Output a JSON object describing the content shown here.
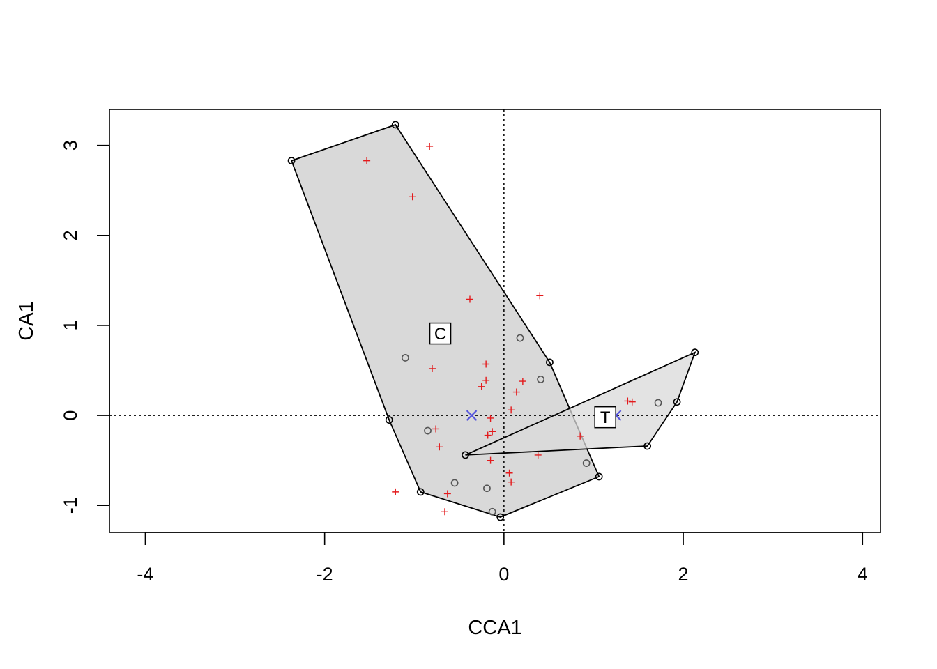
{
  "chart_data": {
    "type": "scatter",
    "title": "",
    "xlabel": "CCA1",
    "ylabel": "CA1",
    "xlim": [
      -4.4,
      4.2
    ],
    "ylim": [
      -1.3,
      3.4
    ],
    "x_ticks": [
      -4,
      -2,
      0,
      2,
      4
    ],
    "x_tick_labels": [
      "-4",
      "-2",
      "0",
      "2",
      "4"
    ],
    "y_ticks": [
      -1,
      0,
      1,
      2,
      3
    ],
    "y_tick_labels": [
      "-1",
      "0",
      "1",
      "2",
      "3"
    ],
    "reference_lines": {
      "x": 0,
      "y": 0,
      "style": "dotted"
    },
    "grid": false,
    "colors": {
      "sites": "#555555",
      "species": "#e31a1c",
      "centroids": "#5555dd",
      "hull_fill": "#d9d9d9",
      "hull_fill_overlap": "#c6c6c6",
      "hull_stroke": "#000000"
    },
    "sites": [
      {
        "x": -1.1,
        "y": 0.64
      },
      {
        "x": 0.18,
        "y": 0.86
      },
      {
        "x": 0.41,
        "y": 0.4
      },
      {
        "x": -0.85,
        "y": -0.17
      },
      {
        "x": -0.55,
        "y": -0.75
      },
      {
        "x": -0.19,
        "y": -0.81
      },
      {
        "x": -0.13,
        "y": -1.07
      },
      {
        "x": 0.92,
        "y": -0.53
      },
      {
        "x": 1.72,
        "y": 0.14
      }
    ],
    "species": [
      {
        "x": -0.83,
        "y": 2.99
      },
      {
        "x": -1.53,
        "y": 2.83
      },
      {
        "x": -1.02,
        "y": 2.43
      },
      {
        "x": -0.38,
        "y": 1.29
      },
      {
        "x": 0.4,
        "y": 1.33
      },
      {
        "x": -0.8,
        "y": 0.52
      },
      {
        "x": -0.2,
        "y": 0.57
      },
      {
        "x": -0.2,
        "y": 0.39
      },
      {
        "x": -0.25,
        "y": 0.32
      },
      {
        "x": 0.21,
        "y": 0.38
      },
      {
        "x": 0.14,
        "y": 0.26
      },
      {
        "x": 0.08,
        "y": 0.06
      },
      {
        "x": -0.15,
        "y": -0.03
      },
      {
        "x": -0.76,
        "y": -0.15
      },
      {
        "x": -0.13,
        "y": -0.18
      },
      {
        "x": -0.18,
        "y": -0.22
      },
      {
        "x": -0.72,
        "y": -0.35
      },
      {
        "x": -0.15,
        "y": -0.5
      },
      {
        "x": 0.38,
        "y": -0.44
      },
      {
        "x": 0.06,
        "y": -0.64
      },
      {
        "x": 0.08,
        "y": -0.74
      },
      {
        "x": -0.63,
        "y": -0.87
      },
      {
        "x": -1.21,
        "y": -0.85
      },
      {
        "x": -0.66,
        "y": -1.07
      },
      {
        "x": 0.85,
        "y": -0.23
      },
      {
        "x": 1.38,
        "y": 0.16
      },
      {
        "x": 1.43,
        "y": 0.15
      }
    ],
    "groups": [
      {
        "label": "C",
        "centroid": {
          "x": -0.36,
          "y": 0.0
        },
        "label_pos": {
          "x": -0.71,
          "y": 0.91
        },
        "hull": [
          {
            "x": -1.21,
            "y": 3.23
          },
          {
            "x": 0.51,
            "y": 0.59
          },
          {
            "x": 1.06,
            "y": -0.68
          },
          {
            "x": -0.04,
            "y": -1.13
          },
          {
            "x": -0.93,
            "y": -0.85
          },
          {
            "x": -1.28,
            "y": -0.05
          },
          {
            "x": -2.37,
            "y": 2.83
          }
        ]
      },
      {
        "label": "T",
        "centroid": {
          "x": 1.25,
          "y": 0.0
        },
        "label_pos": {
          "x": 1.13,
          "y": -0.02
        },
        "hull": [
          {
            "x": 2.13,
            "y": 0.7
          },
          {
            "x": 1.93,
            "y": 0.15
          },
          {
            "x": 1.6,
            "y": -0.34
          },
          {
            "x": -0.43,
            "y": -0.44
          }
        ]
      }
    ]
  }
}
